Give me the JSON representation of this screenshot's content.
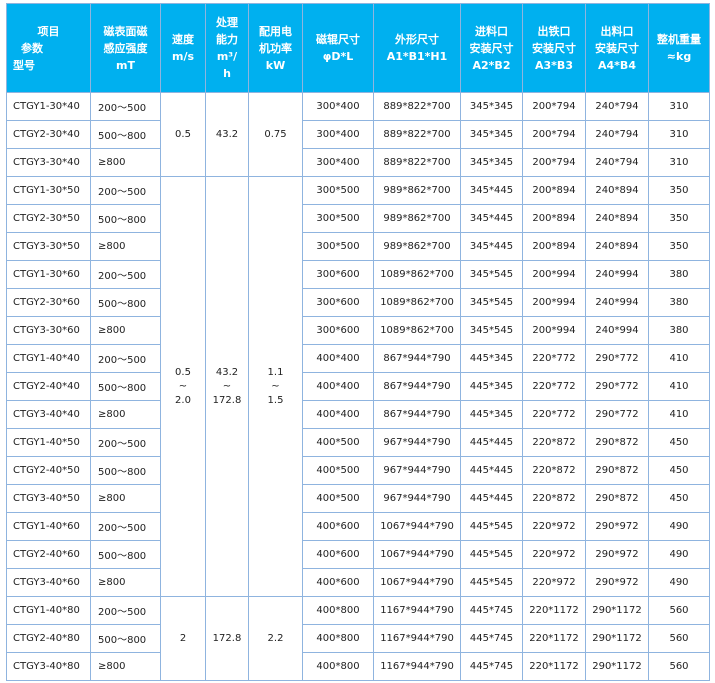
{
  "headers": [
    [
      "项目",
      "参数",
      "型号"
    ],
    [
      "磁表面磁",
      "感应强度",
      "mT"
    ],
    [
      "速度",
      "m/s"
    ],
    [
      "处理",
      "能力",
      "m³/",
      "h"
    ],
    [
      "配用电",
      "机功率",
      "kW"
    ],
    [
      "磁辊尺寸",
      "φD*L"
    ],
    [
      "外形尺寸",
      "A1*B1*H1"
    ],
    [
      "进料口",
      "安装尺寸",
      "A2*B2"
    ],
    [
      "出铁口",
      "安装尺寸",
      "A3*B3"
    ],
    [
      "出料口",
      "安装尺寸",
      "A4*B4"
    ],
    [
      "整机重量",
      "≈kg"
    ]
  ],
  "groups": [
    {
      "speed": [
        "0.5"
      ],
      "capacity": [
        "43.2"
      ],
      "power": [
        "0.75"
      ],
      "rows": 3
    },
    {
      "speed": [
        "0.5",
        "~",
        "2.0"
      ],
      "capacity": [
        "43.2",
        "~",
        "172.8"
      ],
      "power": [
        "1.1",
        "~",
        "1.5"
      ],
      "rows": 15
    },
    {
      "speed": [
        "2"
      ],
      "capacity": [
        "172.8"
      ],
      "power": [
        "2.2"
      ],
      "rows": 3
    }
  ],
  "rows": [
    [
      "CTGY1-30*40",
      "200～500",
      "300*400",
      "889*822*700",
      "345*345",
      "200*794",
      "240*794",
      "310"
    ],
    [
      "CTGY2-30*40",
      "500～800",
      "300*400",
      "889*822*700",
      "345*345",
      "200*794",
      "240*794",
      "310"
    ],
    [
      "CTGY3-30*40",
      "≥800",
      "300*400",
      "889*822*700",
      "345*345",
      "200*794",
      "240*794",
      "310"
    ],
    [
      "CTGY1-30*50",
      "200～500",
      "300*500",
      "989*862*700",
      "345*445",
      "200*894",
      "240*894",
      "350"
    ],
    [
      "CTGY2-30*50",
      "500～800",
      "300*500",
      "989*862*700",
      "345*445",
      "200*894",
      "240*894",
      "350"
    ],
    [
      "CTGY3-30*50",
      "≥800",
      "300*500",
      "989*862*700",
      "345*445",
      "200*894",
      "240*894",
      "350"
    ],
    [
      "CTGY1-30*60",
      "200～500",
      "300*600",
      "1089*862*700",
      "345*545",
      "200*994",
      "240*994",
      "380"
    ],
    [
      "CTGY2-30*60",
      "500～800",
      "300*600",
      "1089*862*700",
      "345*545",
      "200*994",
      "240*994",
      "380"
    ],
    [
      "CTGY3-30*60",
      "≥800",
      "300*600",
      "1089*862*700",
      "345*545",
      "200*994",
      "240*994",
      "380"
    ],
    [
      "CTGY1-40*40",
      "200～500",
      "400*400",
      "867*944*790",
      "445*345",
      "220*772",
      "290*772",
      "410"
    ],
    [
      "CTGY2-40*40",
      "500～800",
      "400*400",
      "867*944*790",
      "445*345",
      "220*772",
      "290*772",
      "410"
    ],
    [
      "CTGY3-40*40",
      "≥800",
      "400*400",
      "867*944*790",
      "445*345",
      "220*772",
      "290*772",
      "410"
    ],
    [
      "CTGY1-40*50",
      "200～500",
      "400*500",
      "967*944*790",
      "445*445",
      "220*872",
      "290*872",
      "450"
    ],
    [
      "CTGY2-40*50",
      "500～800",
      "400*500",
      "967*944*790",
      "445*445",
      "220*872",
      "290*872",
      "450"
    ],
    [
      "CTGY3-40*50",
      "≥800",
      "400*500",
      "967*944*790",
      "445*445",
      "220*872",
      "290*872",
      "450"
    ],
    [
      "CTGY1-40*60",
      "200～500",
      "400*600",
      "1067*944*790",
      "445*545",
      "220*972",
      "290*972",
      "490"
    ],
    [
      "CTGY2-40*60",
      "500～800",
      "400*600",
      "1067*944*790",
      "445*545",
      "220*972",
      "290*972",
      "490"
    ],
    [
      "CTGY3-40*60",
      "≥800",
      "400*600",
      "1067*944*790",
      "445*545",
      "220*972",
      "290*972",
      "490"
    ],
    [
      "CTGY1-40*80",
      "200～500",
      "400*800",
      "1167*944*790",
      "445*745",
      "220*1172",
      "290*1172",
      "560"
    ],
    [
      "CTGY2-40*80",
      "500～800",
      "400*800",
      "1167*944*790",
      "445*745",
      "220*1172",
      "290*1172",
      "560"
    ],
    [
      "CTGY3-40*80",
      "≥800",
      "400*800",
      "1167*944*790",
      "445*745",
      "220*1172",
      "290*1172",
      "560"
    ]
  ],
  "colors": {
    "header_bg": "#00b0ef",
    "border": "#8fb4df"
  }
}
